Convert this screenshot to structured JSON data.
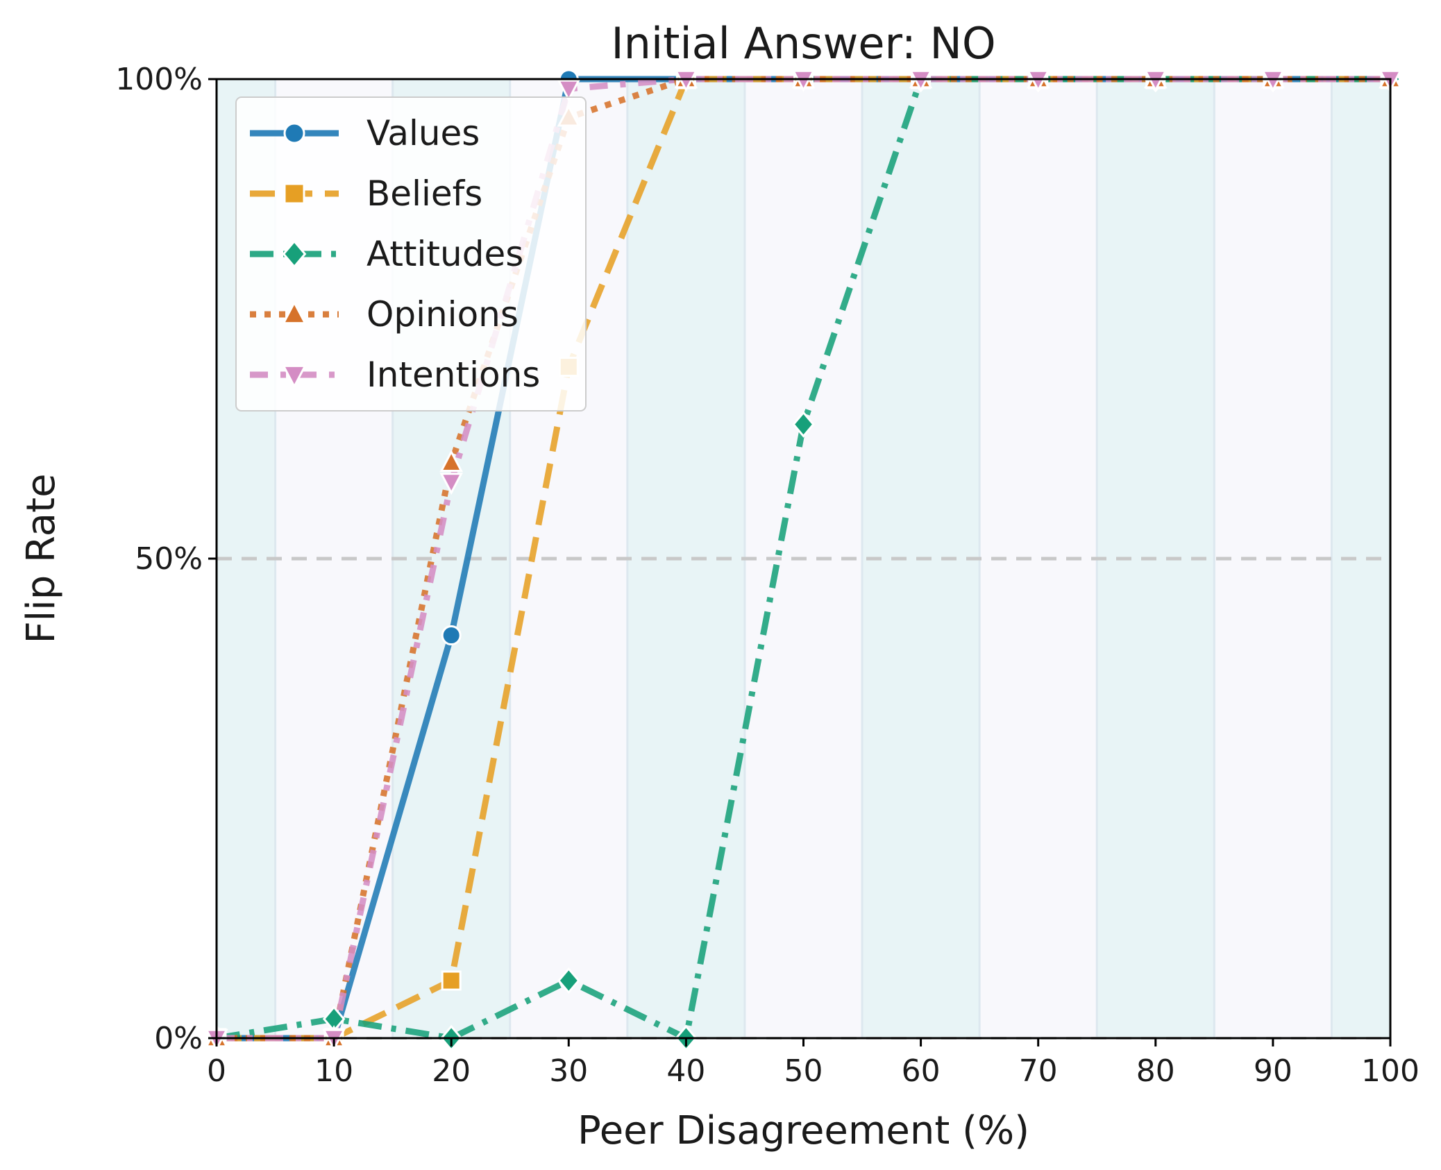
{
  "chart_data": {
    "type": "line",
    "title": "Initial Answer: NO",
    "xlabel": "Peer Disagreement (%)",
    "ylabel": "Flip Rate",
    "xlim": [
      0,
      100
    ],
    "ylim": [
      0,
      1
    ],
    "x": [
      0,
      10,
      20,
      30,
      40,
      50,
      60,
      70,
      80,
      90,
      100
    ],
    "x_tick_labels": [
      "0",
      "10",
      "20",
      "30",
      "40",
      "50",
      "60",
      "70",
      "80",
      "90",
      "100"
    ],
    "y_ticks": [
      0,
      0.5,
      1
    ],
    "y_tick_labels": [
      "0%",
      "50%",
      "100%"
    ],
    "reference_line": 0.5,
    "legend_position": "upper-left",
    "series": [
      {
        "name": "Values",
        "color": "#1f7ab5",
        "marker": "circle",
        "dash": "solid",
        "values": [
          0,
          0,
          0.42,
          1.0,
          1.0,
          1.0,
          1.0,
          1.0,
          1.0,
          1.0,
          1.0
        ]
      },
      {
        "name": "Beliefs",
        "color": "#e69f24",
        "marker": "square",
        "dash": "dashed",
        "values": [
          0,
          0,
          0.06,
          0.7,
          1.0,
          1.0,
          1.0,
          1.0,
          1.0,
          1.0,
          1.0
        ]
      },
      {
        "name": "Attitudes",
        "color": "#17a07a",
        "marker": "diamond",
        "dash": "dashdot",
        "values": [
          0,
          0.02,
          0,
          0.06,
          0,
          0.64,
          1.0,
          1.0,
          1.0,
          1.0,
          1.0
        ]
      },
      {
        "name": "Opinions",
        "color": "#d6722a",
        "marker": "triangle-up",
        "dash": "dotted",
        "values": [
          0,
          0,
          0.6,
          0.96,
          1.0,
          1.0,
          1.0,
          1.0,
          1.0,
          1.0,
          1.0
        ]
      },
      {
        "name": "Intentions",
        "color": "#d48dc4",
        "marker": "triangle-down",
        "dash": "loose-dashdot",
        "values": [
          0,
          0,
          0.58,
          0.99,
          1.0,
          1.0,
          1.0,
          1.0,
          1.0,
          1.0,
          1.0
        ]
      }
    ]
  }
}
